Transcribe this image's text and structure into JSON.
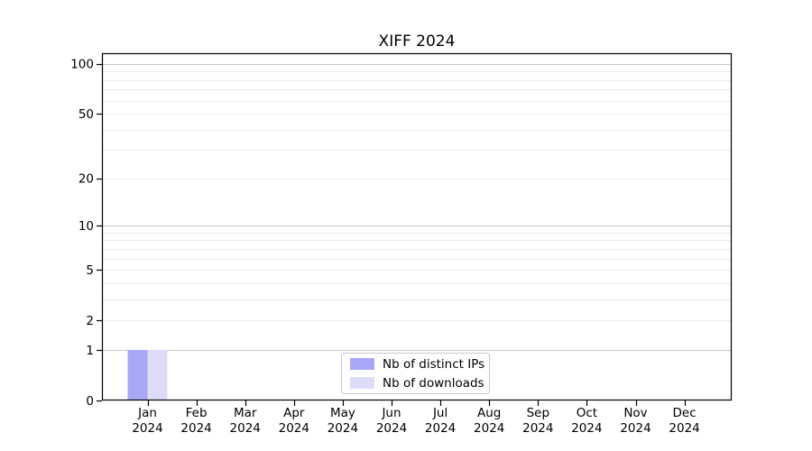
{
  "chart_data": {
    "type": "bar",
    "title": "XIFF 2024",
    "categories": [
      "Jan",
      "Feb",
      "Mar",
      "Apr",
      "May",
      "Jun",
      "Jul",
      "Aug",
      "Sep",
      "Oct",
      "Nov",
      "Dec"
    ],
    "category_year": "2024",
    "series": [
      {
        "name": "Nb of distinct IPs",
        "color": "#a8a8f6",
        "values": [
          1,
          0,
          0,
          0,
          0,
          0,
          0,
          0,
          0,
          0,
          0,
          0
        ]
      },
      {
        "name": "Nb of downloads",
        "color": "#dcdcf9",
        "values": [
          1,
          0,
          0,
          0,
          0,
          0,
          0,
          0,
          0,
          0,
          0,
          0
        ]
      }
    ],
    "yscale": "log1p",
    "ylim": [
      0,
      116
    ],
    "yticks": [
      0,
      1,
      2,
      5,
      10,
      20,
      50,
      100
    ],
    "grid_decades": [
      1,
      10,
      100
    ],
    "grid_minor": [
      2,
      3,
      4,
      5,
      6,
      7,
      8,
      9,
      20,
      30,
      40,
      50,
      60,
      70,
      80,
      90
    ],
    "grid": "both",
    "legend_position": "lower center",
    "xlabel": "",
    "ylabel": "",
    "colors": {
      "grid_major": "#c9c9c9",
      "grid_minor": "#ebebeb",
      "axis": "#000000",
      "text": "#000000"
    }
  }
}
